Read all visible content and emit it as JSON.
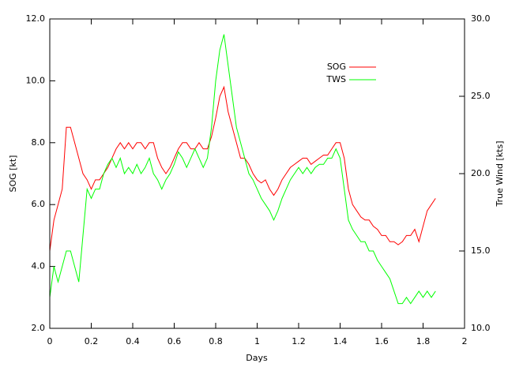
{
  "chart_data": {
    "type": "line",
    "xlabel": "Days",
    "ylabel": "SOG [kt]",
    "y2label": "True Wind [kts]",
    "xlim": [
      0,
      2
    ],
    "xticks": [
      0,
      0.2,
      0.4,
      0.6,
      0.8,
      1,
      1.2,
      1.4,
      1.6,
      1.8,
      2
    ],
    "ylim": [
      2,
      12
    ],
    "yticks": [
      {
        "value": 2,
        "label": "2.0"
      },
      {
        "value": 4,
        "label": "4.0"
      },
      {
        "value": 6,
        "label": "6.0"
      },
      {
        "value": 8,
        "label": "8.0"
      },
      {
        "value": 10,
        "label": "10.0"
      },
      {
        "value": 12,
        "label": "12.0"
      }
    ],
    "y2lim": [
      10,
      30
    ],
    "y2ticks": [
      {
        "value": 10,
        "label": "10.0"
      },
      {
        "value": 15,
        "label": "15.0"
      },
      {
        "value": 20,
        "label": "20.0"
      },
      {
        "value": 25,
        "label": "25.0"
      },
      {
        "value": 30,
        "label": "30.0"
      }
    ],
    "legend": "upper right",
    "x": [
      0,
      0.02,
      0.04,
      0.06,
      0.08,
      0.1,
      0.12,
      0.14,
      0.16,
      0.18,
      0.2,
      0.22,
      0.24,
      0.26,
      0.28,
      0.3,
      0.32,
      0.34,
      0.36,
      0.38,
      0.4,
      0.42,
      0.44,
      0.46,
      0.48,
      0.5,
      0.52,
      0.54,
      0.56,
      0.58,
      0.6,
      0.62,
      0.64,
      0.66,
      0.68,
      0.7,
      0.72,
      0.74,
      0.76,
      0.78,
      0.8,
      0.82,
      0.84,
      0.86,
      0.88,
      0.9,
      0.92,
      0.94,
      0.96,
      0.98,
      1,
      1.02,
      1.04,
      1.06,
      1.08,
      1.1,
      1.12,
      1.14,
      1.16,
      1.18,
      1.2,
      1.22,
      1.24,
      1.26,
      1.28,
      1.3,
      1.32,
      1.34,
      1.36,
      1.38,
      1.4,
      1.42,
      1.44,
      1.46,
      1.48,
      1.5,
      1.52,
      1.54,
      1.56,
      1.58,
      1.6,
      1.62,
      1.64,
      1.66,
      1.68,
      1.7,
      1.72,
      1.74,
      1.76,
      1.78,
      1.8,
      1.82,
      1.84,
      1.86
    ],
    "series": [
      {
        "name": "SOG",
        "color": "#ff0000",
        "values": [
          4.5,
          5.5,
          6,
          6.5,
          8.5,
          8.5,
          8,
          7.5,
          7,
          6.8,
          6.5,
          6.8,
          6.8,
          7,
          7.2,
          7.5,
          7.8,
          8,
          7.8,
          8,
          7.8,
          8,
          8,
          7.8,
          8,
          8,
          7.5,
          7.2,
          7,
          7.2,
          7.5,
          7.8,
          8,
          8,
          7.8,
          7.8,
          8,
          7.8,
          7.8,
          8.2,
          8.8,
          9.5,
          9.8,
          9,
          8.5,
          8,
          7.5,
          7.5,
          7.3,
          7,
          6.8,
          6.7,
          6.8,
          6.5,
          6.3,
          6.5,
          6.8,
          7,
          7.2,
          7.3,
          7.4,
          7.5,
          7.5,
          7.3,
          7.4,
          7.5,
          7.6,
          7.6,
          7.8,
          8,
          8,
          7.5,
          6.5,
          6,
          5.8,
          5.6,
          5.5,
          5.5,
          5.3,
          5.2,
          5,
          5,
          4.8,
          4.8,
          4.7,
          4.8,
          5,
          5,
          5.2,
          4.8,
          5.3,
          5.8,
          6,
          6.2
        ]
      },
      {
        "name": "TWS",
        "color": "#00ff00",
        "axis": "y2",
        "values": [
          12,
          14,
          13,
          14,
          15,
          15,
          14,
          13,
          16,
          19,
          18.4,
          19,
          19,
          20,
          20.6,
          21,
          20.4,
          21,
          20,
          20.4,
          20,
          20.6,
          20,
          20.4,
          21,
          20,
          19.6,
          19,
          19.6,
          20,
          20.6,
          21.4,
          21,
          20.4,
          21,
          21.6,
          21,
          20.4,
          21,
          23,
          26,
          28,
          29,
          27,
          25,
          23,
          22,
          21,
          20,
          19.6,
          19,
          18.4,
          18,
          17.6,
          17,
          17.6,
          18.4,
          19,
          19.6,
          20,
          20.4,
          20,
          20.4,
          20,
          20.4,
          20.6,
          20.6,
          21,
          21,
          21.6,
          21,
          19,
          17,
          16.4,
          16,
          15.6,
          15.6,
          15,
          15,
          14.4,
          14,
          13.6,
          13.2,
          12.4,
          11.6,
          11.6,
          12,
          11.6,
          12,
          12.4,
          12,
          12.4,
          12,
          12.4
        ]
      }
    ]
  }
}
